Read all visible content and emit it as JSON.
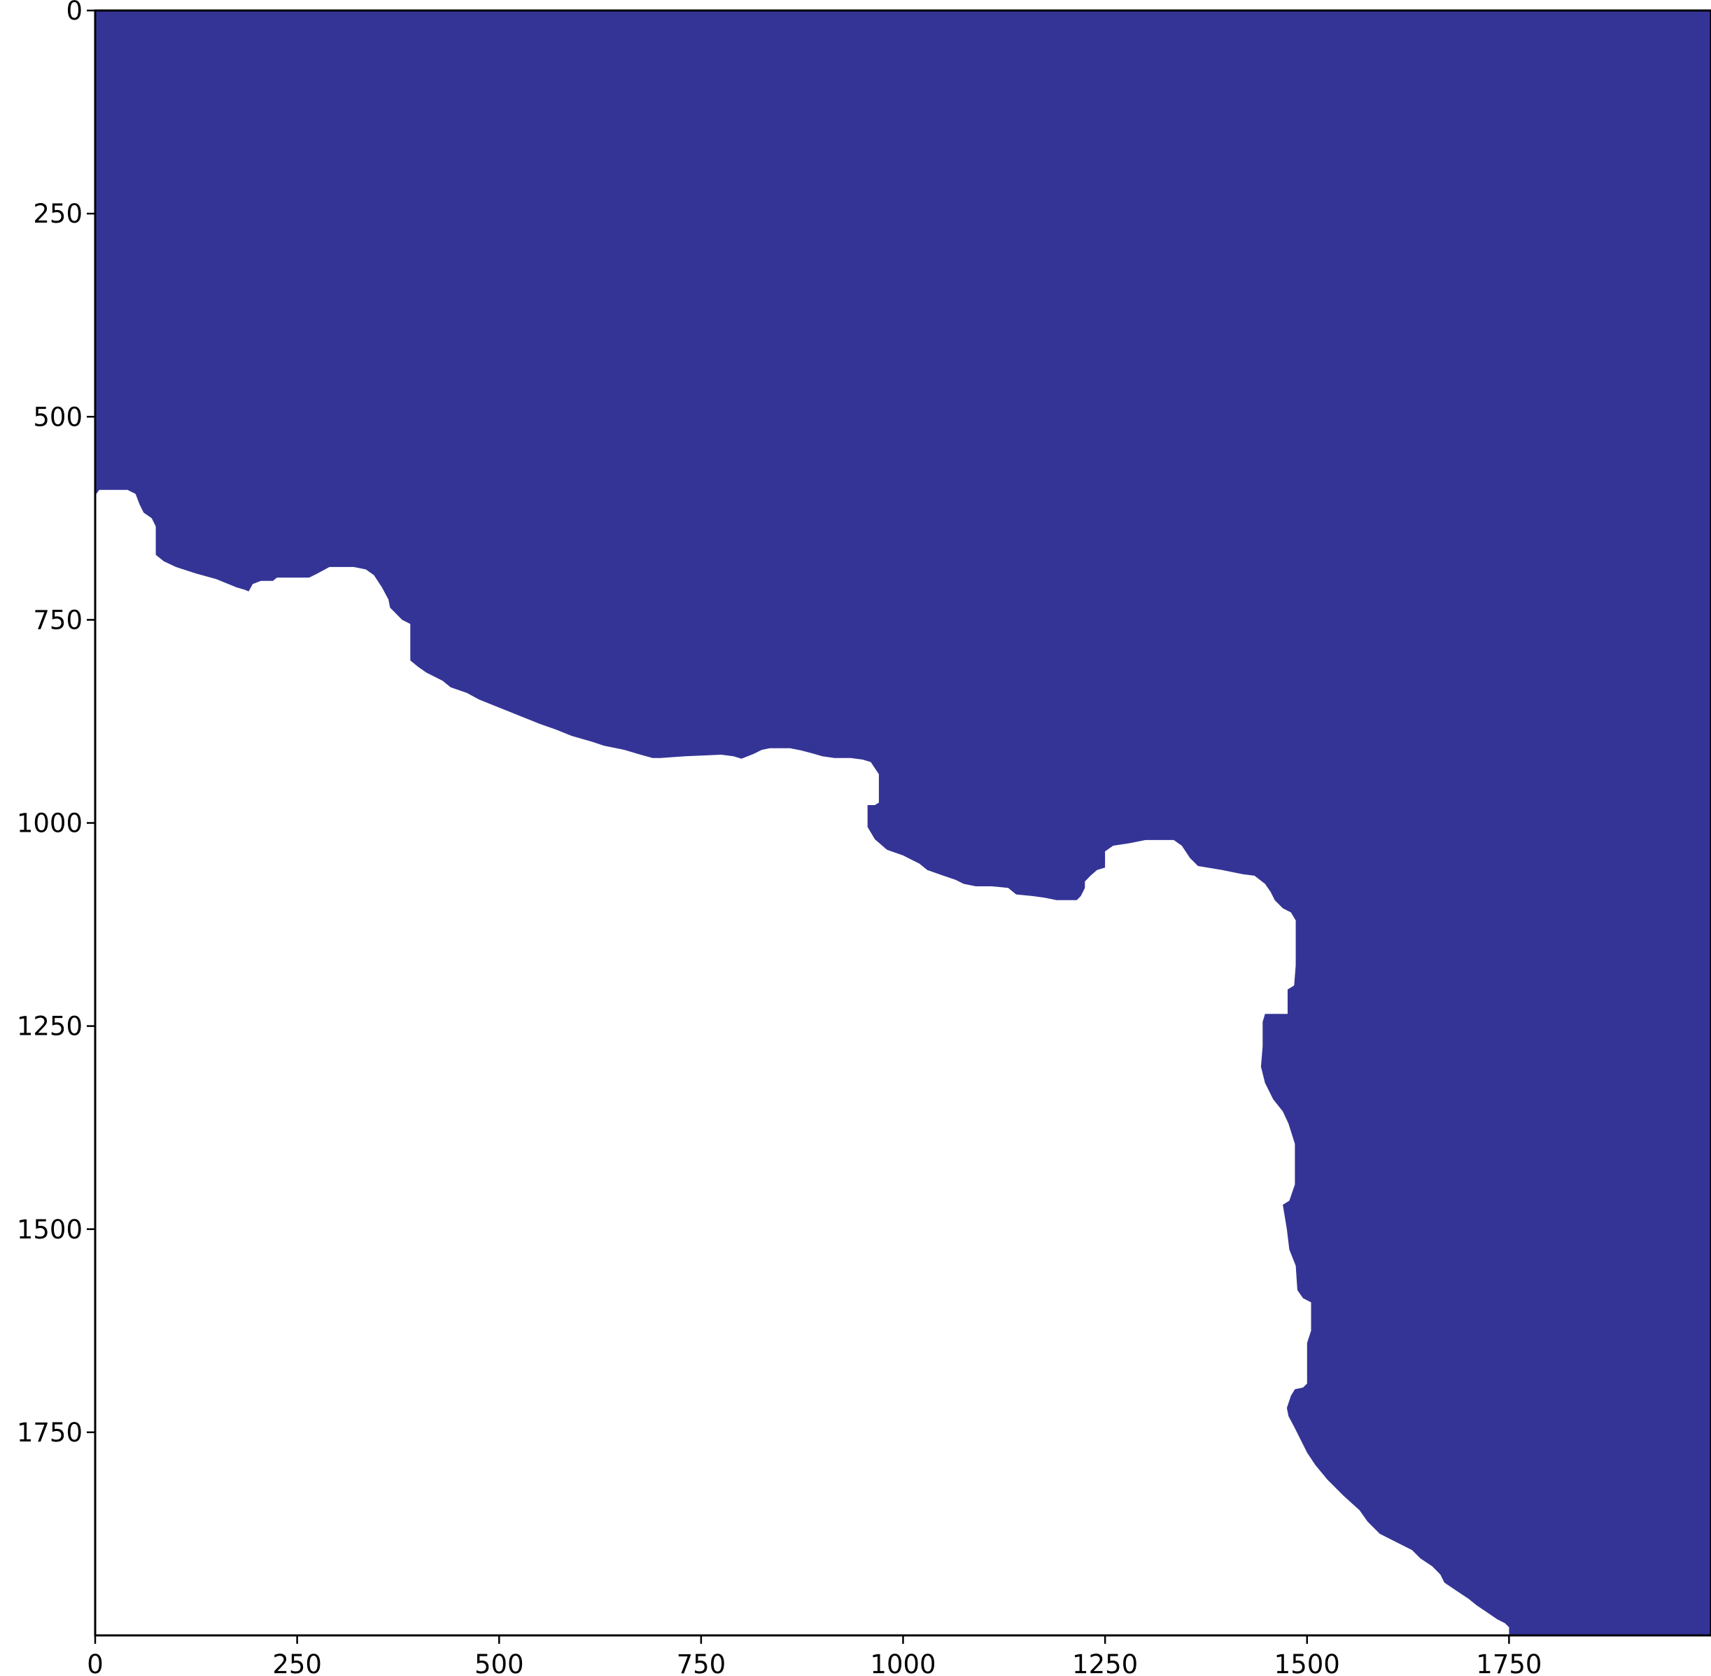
{
  "chart_data": {
    "type": "heatmap",
    "description_of_values": "binary mask image; 1 = water/masked region, 0 = land/unmasked",
    "colors": {
      "masked": "#343497",
      "unmasked": "#ffffff",
      "axis": "#000000"
    },
    "xlim": [
      0,
      2000
    ],
    "ylim": [
      2000,
      0
    ],
    "y_inverted": true,
    "x_ticks": [
      0,
      250,
      500,
      750,
      1000,
      1250,
      1500,
      1750
    ],
    "y_ticks": [
      0,
      250,
      500,
      750,
      1000,
      1250,
      1500,
      1750
    ],
    "x_tick_labels": [
      "0",
      "250",
      "500",
      "750",
      "1000",
      "1250",
      "1500",
      "1750"
    ],
    "y_tick_labels": [
      "0",
      "250",
      "500",
      "750",
      "1000",
      "1250",
      "1500",
      "1750"
    ],
    "grid": false,
    "title": "",
    "xlabel": "",
    "ylabel": "",
    "boundary": [
      [
        0,
        597
      ],
      [
        5,
        590
      ],
      [
        15,
        590
      ],
      [
        40,
        590
      ],
      [
        50,
        595
      ],
      [
        55,
        608
      ],
      [
        60,
        618
      ],
      [
        70,
        625
      ],
      [
        75,
        635
      ],
      [
        75,
        670
      ],
      [
        85,
        678
      ],
      [
        100,
        685
      ],
      [
        125,
        693
      ],
      [
        150,
        700
      ],
      [
        175,
        710
      ],
      [
        185,
        713
      ],
      [
        190,
        715
      ],
      [
        195,
        706
      ],
      [
        205,
        702
      ],
      [
        220,
        702
      ],
      [
        225,
        698
      ],
      [
        250,
        698
      ],
      [
        265,
        698
      ],
      [
        275,
        693
      ],
      [
        290,
        685
      ],
      [
        320,
        685
      ],
      [
        335,
        688
      ],
      [
        345,
        695
      ],
      [
        355,
        710
      ],
      [
        363,
        725
      ],
      [
        365,
        735
      ],
      [
        370,
        740
      ],
      [
        375,
        745
      ],
      [
        380,
        750
      ],
      [
        390,
        755
      ],
      [
        390,
        800
      ],
      [
        400,
        808
      ],
      [
        410,
        815
      ],
      [
        430,
        825
      ],
      [
        440,
        833
      ],
      [
        460,
        840
      ],
      [
        475,
        848
      ],
      [
        500,
        858
      ],
      [
        530,
        870
      ],
      [
        550,
        878
      ],
      [
        570,
        885
      ],
      [
        590,
        893
      ],
      [
        615,
        900
      ],
      [
        630,
        905
      ],
      [
        655,
        910
      ],
      [
        675,
        916
      ],
      [
        690,
        920
      ],
      [
        700,
        920
      ],
      [
        730,
        918
      ],
      [
        775,
        916
      ],
      [
        790,
        918
      ],
      [
        800,
        921
      ],
      [
        815,
        915
      ],
      [
        825,
        910
      ],
      [
        835,
        908
      ],
      [
        860,
        908
      ],
      [
        875,
        911
      ],
      [
        890,
        915
      ],
      [
        900,
        918
      ],
      [
        915,
        920
      ],
      [
        935,
        920
      ],
      [
        950,
        922
      ],
      [
        960,
        925
      ],
      [
        970,
        940
      ],
      [
        970,
        975
      ],
      [
        965,
        978
      ],
      [
        956,
        978
      ],
      [
        956,
        1005
      ],
      [
        965,
        1020
      ],
      [
        980,
        1033
      ],
      [
        1000,
        1040
      ],
      [
        1010,
        1045
      ],
      [
        1020,
        1050
      ],
      [
        1030,
        1058
      ],
      [
        1050,
        1065
      ],
      [
        1065,
        1070
      ],
      [
        1075,
        1075
      ],
      [
        1090,
        1078
      ],
      [
        1110,
        1078
      ],
      [
        1130,
        1080
      ],
      [
        1140,
        1088
      ],
      [
        1160,
        1090
      ],
      [
        1175,
        1092
      ],
      [
        1190,
        1095
      ],
      [
        1205,
        1095
      ],
      [
        1215,
        1095
      ],
      [
        1220,
        1090
      ],
      [
        1225,
        1080
      ],
      [
        1225,
        1072
      ],
      [
        1232,
        1065
      ],
      [
        1240,
        1058
      ],
      [
        1250,
        1055
      ],
      [
        1250,
        1035
      ],
      [
        1260,
        1028
      ],
      [
        1280,
        1025
      ],
      [
        1300,
        1021
      ],
      [
        1335,
        1021
      ],
      [
        1345,
        1028
      ],
      [
        1355,
        1043
      ],
      [
        1365,
        1053
      ],
      [
        1395,
        1058
      ],
      [
        1420,
        1063
      ],
      [
        1435,
        1065
      ],
      [
        1448,
        1075
      ],
      [
        1455,
        1085
      ],
      [
        1460,
        1095
      ],
      [
        1470,
        1105
      ],
      [
        1480,
        1110
      ],
      [
        1486,
        1120
      ],
      [
        1486,
        1175
      ],
      [
        1484,
        1200
      ],
      [
        1476,
        1205
      ],
      [
        1476,
        1235
      ],
      [
        1462,
        1235
      ],
      [
        1448,
        1235
      ],
      [
        1445,
        1245
      ],
      [
        1445,
        1275
      ],
      [
        1443,
        1300
      ],
      [
        1448,
        1320
      ],
      [
        1458,
        1340
      ],
      [
        1470,
        1355
      ],
      [
        1477,
        1370
      ],
      [
        1485,
        1395
      ],
      [
        1485,
        1445
      ],
      [
        1478,
        1465
      ],
      [
        1470,
        1470
      ],
      [
        1475,
        1500
      ],
      [
        1478,
        1525
      ],
      [
        1486,
        1545
      ],
      [
        1488,
        1575
      ],
      [
        1495,
        1585
      ],
      [
        1505,
        1590
      ],
      [
        1505,
        1625
      ],
      [
        1500,
        1640
      ],
      [
        1500,
        1690
      ],
      [
        1495,
        1695
      ],
      [
        1485,
        1697
      ],
      [
        1480,
        1705
      ],
      [
        1475,
        1720
      ],
      [
        1477,
        1730
      ],
      [
        1485,
        1745
      ],
      [
        1500,
        1775
      ],
      [
        1510,
        1790
      ],
      [
        1525,
        1808
      ],
      [
        1545,
        1828
      ],
      [
        1565,
        1846
      ],
      [
        1575,
        1860
      ],
      [
        1590,
        1875
      ],
      [
        1610,
        1885
      ],
      [
        1630,
        1895
      ],
      [
        1640,
        1905
      ],
      [
        1655,
        1915
      ],
      [
        1665,
        1925
      ],
      [
        1670,
        1935
      ],
      [
        1685,
        1945
      ],
      [
        1700,
        1955
      ],
      [
        1710,
        1963
      ],
      [
        1725,
        1973
      ],
      [
        1735,
        1980
      ],
      [
        1745,
        1985
      ],
      [
        1750,
        1990
      ],
      [
        1750,
        2000
      ],
      [
        1760,
        2010
      ],
      [
        1770,
        2015
      ]
    ]
  }
}
